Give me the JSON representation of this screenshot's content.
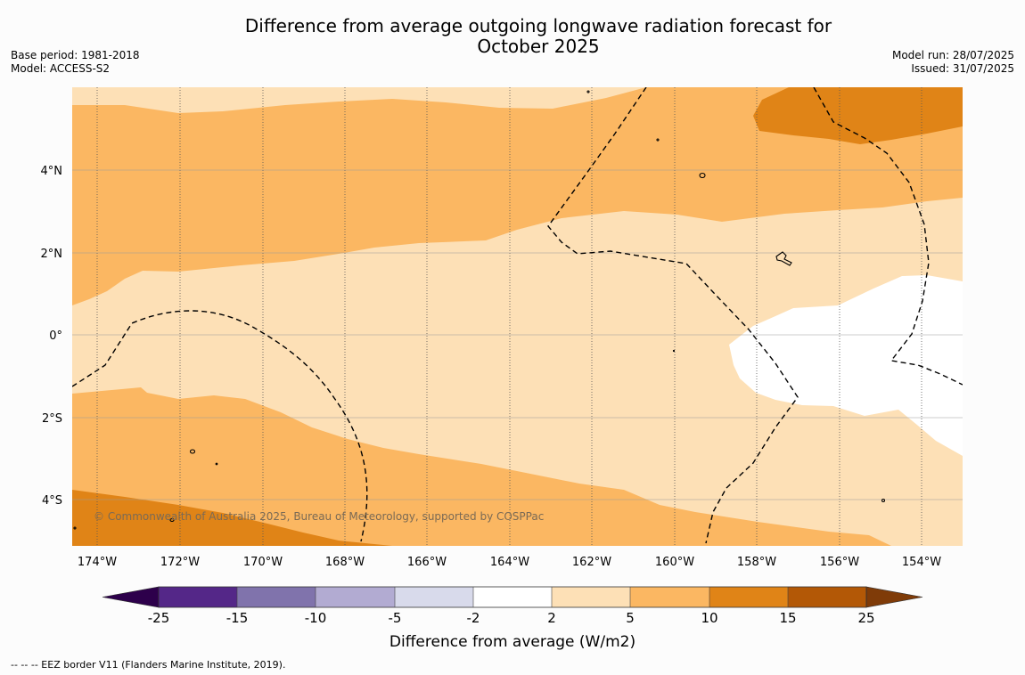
{
  "title": {
    "line1": "Difference from average outgoing longwave radiation forecast for",
    "line2": "October 2025"
  },
  "info_left": {
    "base_period": "Base period: 1981-2018",
    "model": "Model: ACCESS-S2"
  },
  "info_right": {
    "model_run": "Model run: 28/07/2025",
    "issued": "Issued: 31/07/2025"
  },
  "map": {
    "lon_labels": [
      "174°W",
      "172°W",
      "170°W",
      "168°W",
      "166°W",
      "164°W",
      "162°W",
      "160°W",
      "158°W",
      "156°W",
      "154°W"
    ],
    "lat_labels": [
      "4°N",
      "2°N",
      "0°",
      "2°S",
      "4°S"
    ],
    "watermark": "© Commonwealth of Australia 2025, Bureau of Meteorology, supported by COSPPac"
  },
  "colorbar": {
    "label": "Difference from average (W/m2)",
    "ticks": [
      "-25",
      "-15",
      "-10",
      "-5",
      "-2",
      "2",
      "5",
      "10",
      "15",
      "25"
    ],
    "colors": {
      "lt_-25": "#2d004b",
      "-25_-15": "#542788",
      "-15_-10": "#8073ac",
      "-10_-5": "#b2abd2",
      "-5_-2": "#d8daeb",
      "-2_2": "#ffffff",
      "2_5": "#fde0b6",
      "5_10": "#fbb762",
      "10_15": "#e08417",
      "15_25": "#b35806",
      "gt_25": "#7f3b08"
    }
  },
  "footer": "--  --  -- EEZ border V11 (Flanders Marine Institute, 2019)."
}
